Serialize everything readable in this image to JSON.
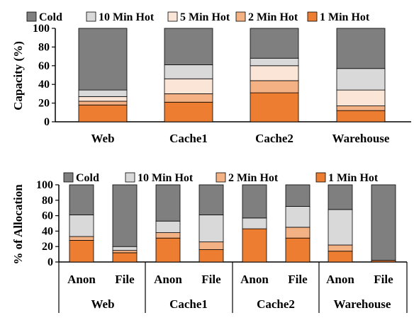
{
  "colors": {
    "cold": "#7f7f7f",
    "min10": "#d9d9d9",
    "min5": "#fbe5d6",
    "min2": "#f4b183",
    "min1": "#ed7d31",
    "stroke": "#000000"
  },
  "chart_data": [
    {
      "type": "bar",
      "stacked": true,
      "title": "",
      "ylabel": "Capacity (%)",
      "xlabel": "",
      "ylim": [
        0,
        100
      ],
      "yticks": [
        "0",
        "20",
        "40",
        "60",
        "80",
        "100"
      ],
      "legend_position": "top",
      "legend": [
        "Cold",
        "10 Min Hot",
        "5 Min Hot",
        "2 Min Hot",
        "1 Min Hot"
      ],
      "categories": [
        "Web",
        "Cache1",
        "Cache2",
        "Warehouse"
      ],
      "series": [
        {
          "name": "1 Min Hot",
          "key": "min1",
          "values": [
            18,
            21,
            31,
            12
          ]
        },
        {
          "name": "2 Min Hot",
          "key": "min2",
          "values": [
            4,
            9,
            13,
            5
          ]
        },
        {
          "name": "5 Min Hot",
          "key": "min5",
          "values": [
            5,
            16,
            16,
            17
          ]
        },
        {
          "name": "10 Min Hot",
          "key": "min10",
          "values": [
            7,
            15,
            8,
            23
          ]
        },
        {
          "name": "Cold",
          "key": "cold",
          "values": [
            66,
            39,
            32,
            43
          ]
        }
      ]
    },
    {
      "type": "bar",
      "stacked": true,
      "title": "",
      "ylabel": "% of Allocation",
      "xlabel": "",
      "ylim": [
        0,
        100
      ],
      "yticks": [
        "0",
        "20",
        "40",
        "60",
        "80",
        "100"
      ],
      "legend_position": "top",
      "legend": [
        "Cold",
        "10 Min Hot",
        "2 Min Hot",
        "1 Min Hot"
      ],
      "groups": [
        "Web",
        "Cache1",
        "Cache2",
        "Warehouse"
      ],
      "subcategories": [
        "Anon",
        "File",
        "Anon",
        "File",
        "Anon",
        "File",
        "Anon",
        "File"
      ],
      "series": [
        {
          "name": "1 Min Hot",
          "key": "min1",
          "values": [
            28,
            12,
            31,
            16,
            43,
            31,
            14,
            2
          ]
        },
        {
          "name": "2 Min Hot",
          "key": "min2",
          "values": [
            5,
            3,
            7,
            10,
            0,
            14,
            8,
            0
          ]
        },
        {
          "name": "10 Min Hot",
          "key": "min10",
          "values": [
            28,
            5,
            15,
            35,
            14,
            27,
            46,
            0
          ]
        },
        {
          "name": "Cold",
          "key": "cold",
          "values": [
            39,
            80,
            47,
            39,
            43,
            28,
            32,
            98
          ]
        }
      ]
    }
  ]
}
